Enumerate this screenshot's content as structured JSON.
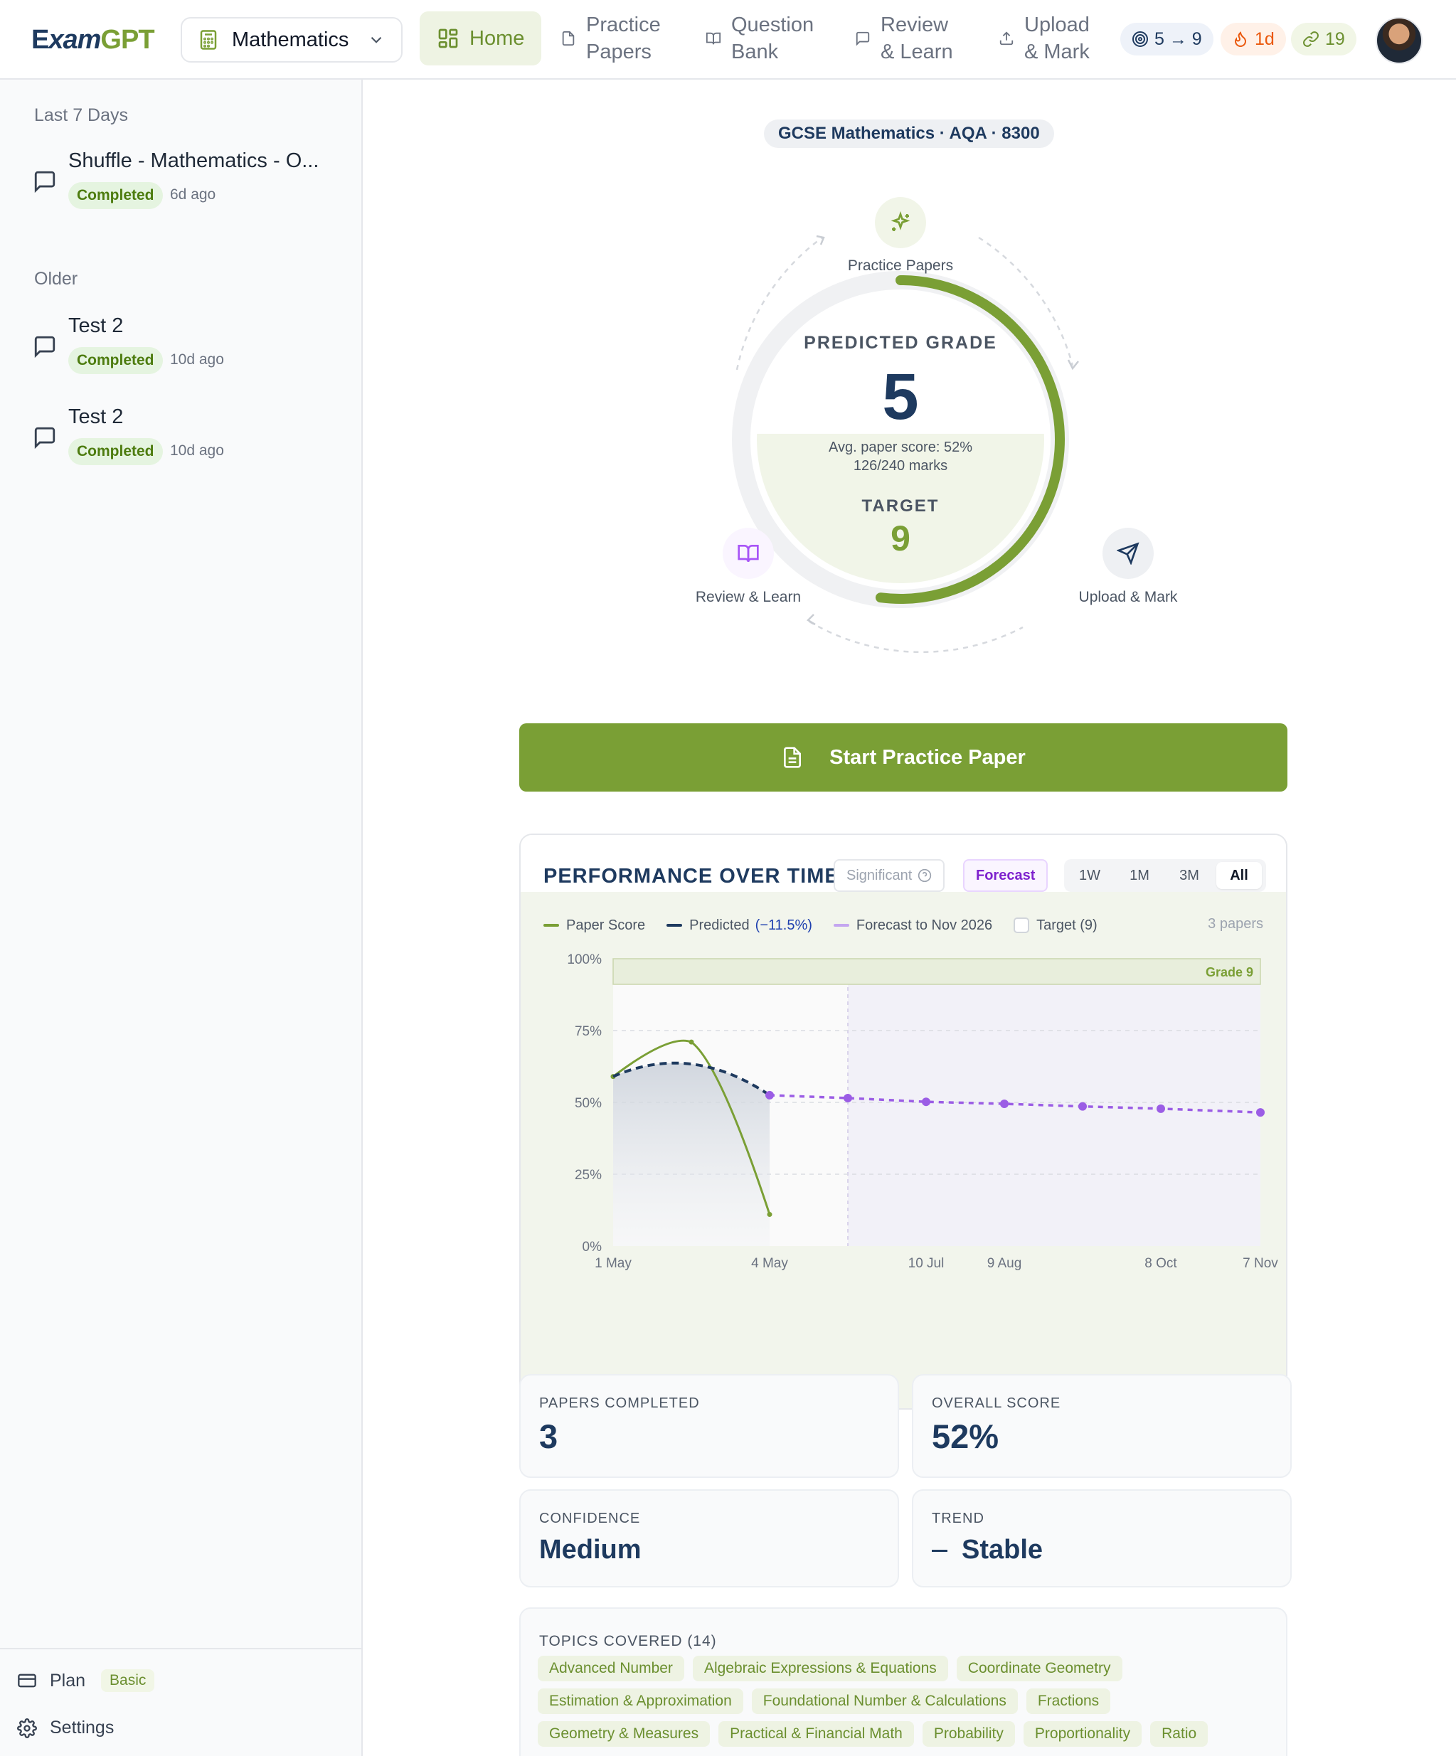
{
  "header": {
    "logo": {
      "part1": "E",
      "part2": "xam",
      "part3": "GPT"
    },
    "subject": "Mathematics",
    "nav": [
      {
        "label_line1": "Home",
        "label_line2": "",
        "icon": "grid-icon",
        "active": true
      },
      {
        "label_line1": "Practice",
        "label_line2": "Papers",
        "icon": "document-icon",
        "active": false
      },
      {
        "label_line1": "Question",
        "label_line2": "Bank",
        "icon": "book-icon",
        "active": false
      },
      {
        "label_line1": "Review",
        "label_line2": "& Learn",
        "icon": "chat-icon",
        "active": false
      },
      {
        "label_line1": "Upload",
        "label_line2": "& Mark",
        "icon": "upload-icon",
        "active": false
      }
    ],
    "grade_pill": "5 → 9",
    "streak_pill": "1d",
    "xp_pill": "19"
  },
  "sidebar": {
    "sections": [
      {
        "label": "Last 7 Days",
        "items": [
          {
            "title": "Shuffle - Mathematics - O...",
            "status": "Completed",
            "ago": "6d ago"
          }
        ]
      },
      {
        "label": "Older",
        "items": [
          {
            "title": "Test 2",
            "status": "Completed",
            "ago": "10d ago"
          },
          {
            "title": "Test 2",
            "status": "Completed",
            "ago": "10d ago"
          }
        ]
      }
    ],
    "plan_label": "Plan",
    "plan_value": "Basic",
    "settings_label": "Settings"
  },
  "main": {
    "course": "GCSE Mathematics · AQA · 8300",
    "orbit": {
      "practice_papers": "Practice Papers",
      "review_learn": "Review & Learn",
      "upload_mark": "Upload & Mark"
    },
    "predicted_label": "PREDICTED GRADE",
    "predicted_grade": "5",
    "avg_score": "Avg. paper score: 52%",
    "marks": "126/240 marks",
    "target_label": "TARGET",
    "target_grade": "9",
    "gauge_progress": 0.52,
    "start_button": "Start Practice Paper",
    "performance": {
      "title": "PERFORMANCE OVER TIME",
      "significant": "Significant",
      "forecast": "Forecast",
      "ranges": [
        "1W",
        "1M",
        "3M",
        "All"
      ],
      "active_range": "All",
      "legend": {
        "paper_score": "Paper Score",
        "predicted": "Predicted",
        "predicted_change": "(−11.5%)",
        "forecast": "Forecast to Nov 2026",
        "target": "Target (9)"
      },
      "papers_count": "3 papers"
    },
    "stats": {
      "papers_label": "PAPERS COMPLETED",
      "papers_value": "3",
      "overall_label": "OVERALL SCORE",
      "overall_value": "52%",
      "confidence_label": "CONFIDENCE",
      "confidence_value": "Medium",
      "trend_label": "TREND",
      "trend_value": "Stable"
    },
    "topics": {
      "title": "TOPICS COVERED (14)",
      "items": [
        "Advanced Number",
        "Algebraic Expressions & Equations",
        "Coordinate Geometry",
        "Estimation & Approximation",
        "Foundational Number & Calculations",
        "Fractions",
        "Geometry & Measures",
        "Practical & Financial Math",
        "Probability",
        "Proportionality",
        "Ratio"
      ]
    }
  },
  "chart_data": {
    "type": "line",
    "y_ticks": [
      "100%",
      "75%",
      "50%",
      "25%",
      "0%"
    ],
    "x_ticks": [
      "1 May",
      "4 May",
      "10 Jul",
      "9 Aug",
      "8 Oct",
      "7 Nov"
    ],
    "ylim": [
      0,
      100
    ],
    "band_label": "Grade 9",
    "series": [
      {
        "name": "Paper Score",
        "color": "#7a9f35",
        "points": [
          [
            "1 May",
            59
          ],
          [
            "2.5 May",
            71
          ],
          [
            "4 May",
            11
          ]
        ]
      },
      {
        "name": "Predicted",
        "color": "#1e3a5f",
        "points": [
          [
            "1 May",
            59
          ],
          [
            "2.5 May",
            64
          ],
          [
            "4 May",
            52.5
          ]
        ]
      },
      {
        "name": "Forecast to Nov 2026",
        "color": "#9b5de5",
        "points": [
          [
            "4 May",
            52.5
          ],
          [
            "10 Jun",
            51.5
          ],
          [
            "10 Jul",
            50.2
          ],
          [
            "9 Aug",
            49.5
          ],
          [
            "8 Sep",
            48.6
          ],
          [
            "8 Oct",
            47.8
          ],
          [
            "7 Nov",
            46.5
          ]
        ]
      }
    ]
  },
  "colors": {
    "accent": "#7a9f35",
    "navy": "#1e3a5f",
    "forecast": "#9b5de5"
  }
}
